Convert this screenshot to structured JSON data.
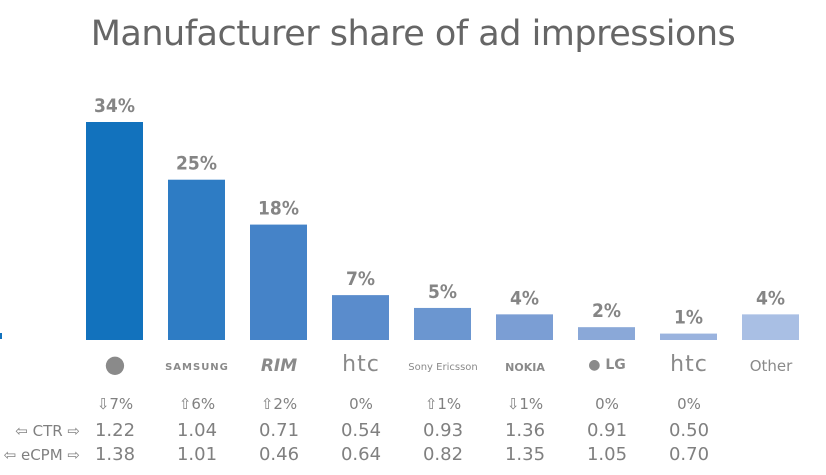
{
  "chart_data": {
    "type": "bar",
    "title": "Manufacturer share of ad impressions",
    "categories": [
      "Apple",
      "SAMSUNG",
      "RIM",
      "htc",
      "Sony Ericsson",
      "NOKIA",
      "LG",
      "htc",
      "Other"
    ],
    "values": [
      34,
      25,
      18,
      7,
      5,
      4,
      2,
      1,
      4
    ],
    "data_labels": [
      "34%",
      "25%",
      "18%",
      "7%",
      "5%",
      "4%",
      "2%",
      "1%",
      "4%"
    ],
    "ylim": [
      0,
      34
    ],
    "grid": false,
    "colors": [
      "#1272bd",
      "#2e7cc4",
      "#4583c8",
      "#5a8ccc",
      "#6b96d0",
      "#7b9ed4",
      "#8aa8d8",
      "#9ab3de",
      "#a9bfe4"
    ],
    "table": {
      "change": [
        "⇩7%",
        "⇧6%",
        "⇧2%",
        "0%",
        "⇧1%",
        "⇩1%",
        "0%",
        "0%",
        ""
      ],
      "ctr_label": "⇦ CTR ⇨",
      "ctr": [
        "1.22",
        "1.04",
        "0.71",
        "0.54",
        "0.93",
        "1.36",
        "0.91",
        "0.50",
        ""
      ],
      "ecpm_label": "⇦ eCPM ⇨",
      "ecpm": [
        "1.38",
        "1.01",
        "0.46",
        "0.64",
        "0.82",
        "1.35",
        "1.05",
        "0.70",
        ""
      ]
    }
  }
}
